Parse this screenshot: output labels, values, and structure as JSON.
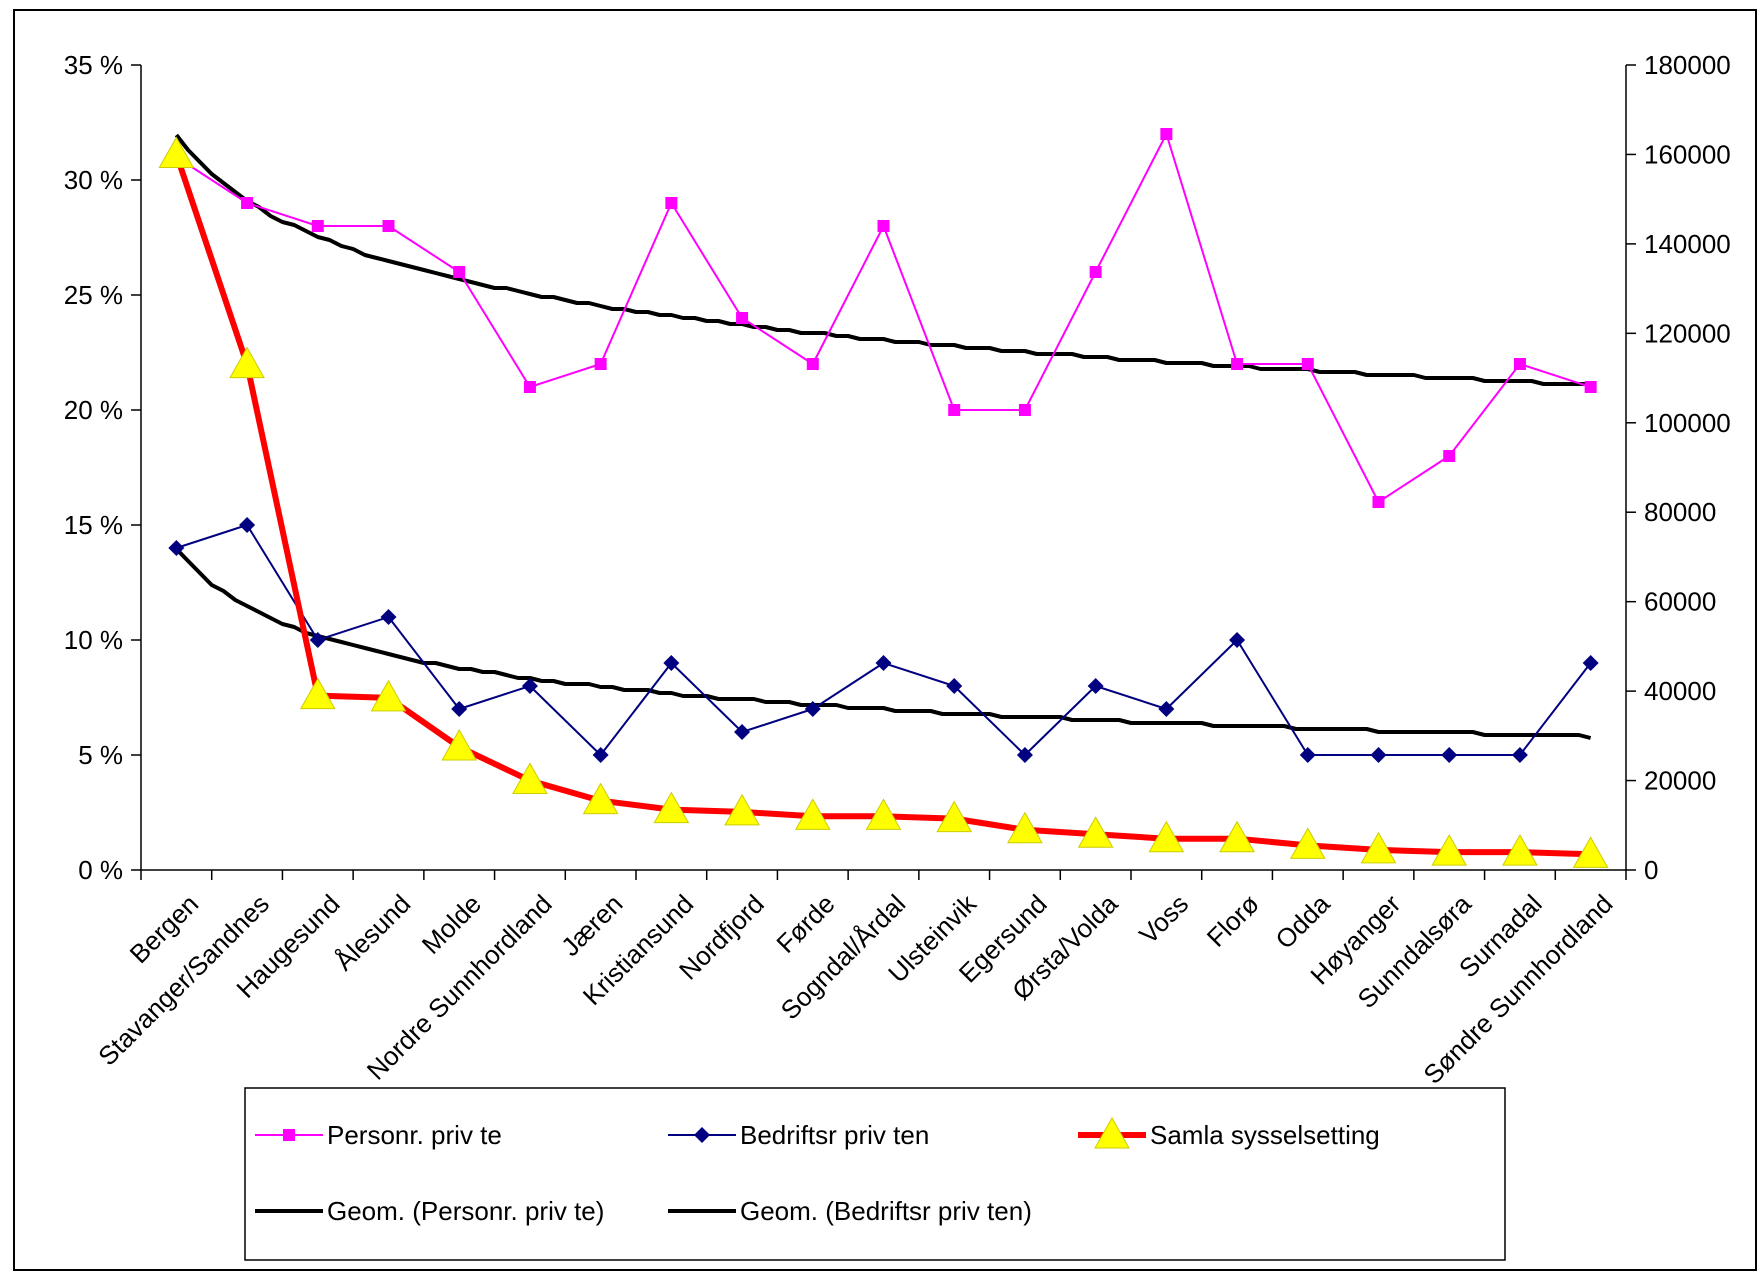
{
  "chart_data": {
    "type": "line",
    "categories": [
      "Bergen",
      "Stavanger/Sandnes",
      "Haugesund",
      "Ålesund",
      "Molde",
      "Nordre Sunnhordland",
      "Jæren",
      "Kristiansund",
      "Nordfjord",
      "Førde",
      "Sogndal/Årdal",
      "Ulsteinvik",
      "Egersund",
      "Ørsta/Volda",
      "Voss",
      "Florø",
      "Odda",
      "Høyanger",
      "Sunndalsøra",
      "Surnadal",
      "Søndre Sunnhordland"
    ],
    "y_left": {
      "ticks": [
        "0 %",
        "5 %",
        "10 %",
        "15 %",
        "20 %",
        "25 %",
        "30 %",
        "35 %"
      ],
      "ylim": [
        0,
        35
      ]
    },
    "y_right": {
      "ticks": [
        "0",
        "20000",
        "40000",
        "60000",
        "80000",
        "100000",
        "120000",
        "140000",
        "160000",
        "180000"
      ],
      "ylim": [
        0,
        180000
      ]
    },
    "series": [
      {
        "name": "Personr. priv te",
        "axis": "left",
        "color": "#ff00ff",
        "marker": "square",
        "values": [
          31,
          29,
          28,
          28,
          26,
          21,
          22,
          29,
          24,
          22,
          28,
          20,
          20,
          26,
          32,
          22,
          22,
          16,
          18,
          22,
          21
        ]
      },
      {
        "name": "Bedriftsr priv ten",
        "axis": "left",
        "color": "#000080",
        "marker": "diamond",
        "values": [
          14,
          15,
          10,
          11,
          7,
          8,
          5,
          9,
          6,
          7,
          9,
          8,
          5,
          8,
          7,
          10,
          5,
          5,
          5,
          5,
          9
        ]
      },
      {
        "name": "Samla sysselsetting",
        "axis": "right",
        "color": "#ff0000",
        "marker": "triangle",
        "values": [
          160000,
          113000,
          39000,
          38500,
          27500,
          20000,
          15500,
          13500,
          13000,
          12000,
          12000,
          11500,
          9000,
          8000,
          7000,
          7000,
          5500,
          4500,
          4000,
          4000,
          3500
        ]
      },
      {
        "name": "Geom. (Personr. priv te)",
        "axis": "left",
        "color": "#000000",
        "marker": "none",
        "trend_start": 32,
        "trend_end": 21.1
      },
      {
        "name": "Geom. (Bedriftsr priv ten)",
        "axis": "left",
        "color": "#000000",
        "marker": "none",
        "trend_start": 14,
        "trend_end": 5.8
      }
    ],
    "legend": {
      "placement": "bottom",
      "entries": [
        "Personr. priv te",
        "Bedriftsr priv ten",
        "Samla sysselsetting",
        "Geom. (Personr. priv te)",
        "Geom. (Bedriftsr priv ten)"
      ]
    },
    "grid": false
  }
}
